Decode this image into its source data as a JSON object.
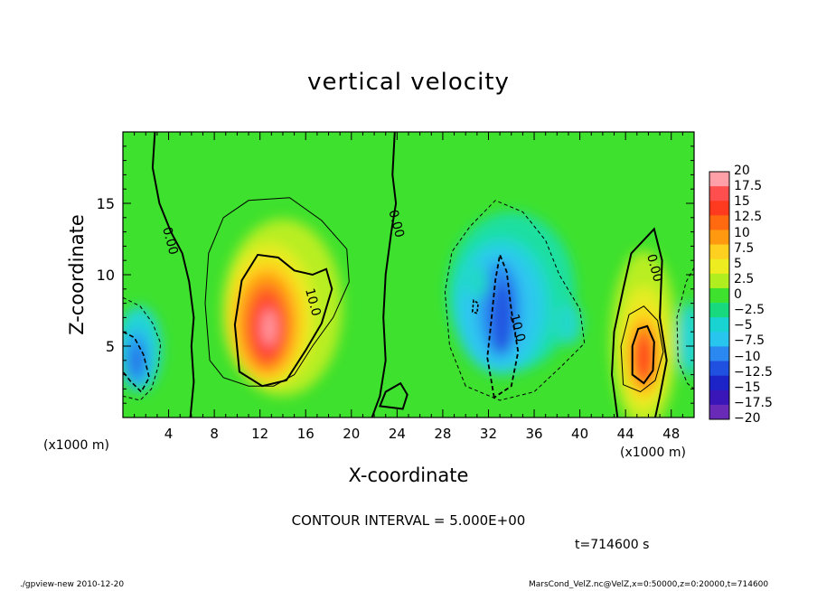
{
  "figure": {
    "title": "vertical velocity",
    "contour_interval": "CONTOUR INTERVAL = 5.000E+00",
    "time_label": "t=714600 s",
    "footer_left": "./gpview-new  2010-12-20",
    "footer_right": "MarsCond_VelZ.nc@VelZ,x=0:50000,z=0:20000,t=714600",
    "x_unit_left": "(x1000 m)",
    "x_unit_right": "(x1000 m)"
  },
  "chart_data": {
    "type": "heatmap",
    "title": "vertical velocity",
    "xlabel": "X-coordinate",
    "ylabel": "Z-coordinate",
    "xlim": [
      0,
      50
    ],
    "ylim": [
      0,
      20
    ],
    "x_ticks": [
      4,
      8,
      12,
      16,
      20,
      24,
      28,
      32,
      36,
      40,
      44,
      48
    ],
    "y_ticks": [
      5,
      10,
      15
    ],
    "contour_labels": [
      {
        "text": "0.00",
        "x": 3.8,
        "z": 12.3
      },
      {
        "text": "10.0",
        "x": 16.3,
        "z": 8.0
      },
      {
        "text": "0.00",
        "x": 23.6,
        "z": 13.5
      },
      {
        "text": "10.0",
        "x": 34.2,
        "z": 6.2
      },
      {
        "text": "0.00",
        "x": 46.2,
        "z": 10.4
      }
    ],
    "features": [
      {
        "name": "updraft",
        "x_center": 12.5,
        "z_center": 6.5,
        "peak": 20
      },
      {
        "name": "downdraft",
        "x_center": 33.0,
        "z_center": 7.5,
        "peak": -12.5
      },
      {
        "name": "updraft",
        "x_center": 45.5,
        "z_center": 4.3,
        "peak": 12.5
      },
      {
        "name": "downdraft",
        "x_center": 1.2,
        "z_center": 4.2,
        "peak": -10
      }
    ],
    "colorbar": {
      "levels": [
        "20",
        "17.5",
        "15",
        "12.5",
        "10",
        "7.5",
        "5",
        "2.5",
        "0",
        "−2.5",
        "−5",
        "−7.5",
        "−10",
        "−12.5",
        "−15",
        "−17.5",
        "−20"
      ],
      "colors": [
        "#ff9fa8",
        "#ff4e4e",
        "#ff3a1e",
        "#ff6a10",
        "#ff9a10",
        "#ffd020",
        "#ecec20",
        "#b0ee20",
        "#3ee12e",
        "#18d97e",
        "#19d2d2",
        "#28c6ee",
        "#2a88f0",
        "#2050e0",
        "#1c24c8",
        "#3a16b8",
        "#6a2ab8"
      ]
    }
  }
}
